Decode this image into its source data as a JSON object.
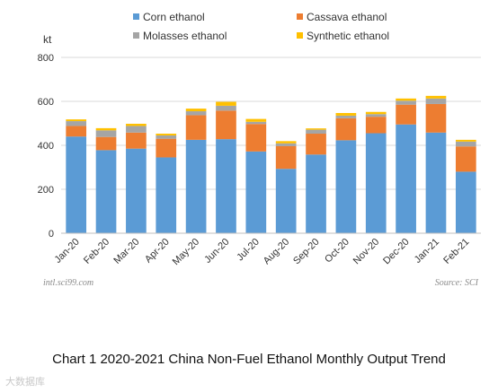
{
  "chart_data": {
    "type": "bar",
    "stacked": true,
    "title": "Chart 1 2020-2021 China Non-Fuel Ethanol Monthly Output Trend",
    "ylabel": "kt",
    "xlabel": "",
    "ylim": [
      0,
      800
    ],
    "yticks": [
      0,
      200,
      400,
      600,
      800
    ],
    "grid": true,
    "legend_position": "top",
    "categories": [
      "Jan-20",
      "Feb-20",
      "Mar-20",
      "Apr-20",
      "May-20",
      "Jun-20",
      "Jul-20",
      "Aug-20",
      "Sep-20",
      "Oct-20",
      "Nov-20",
      "Dec-20",
      "Jan-21",
      "Feb-21"
    ],
    "series": [
      {
        "name": "Corn ethanol",
        "color": "#5b9bd5",
        "values": [
          440,
          378,
          385,
          345,
          425,
          428,
          372,
          293,
          358,
          423,
          455,
          495,
          458,
          280
        ]
      },
      {
        "name": "Cassava ethanol",
        "color": "#ed7d31",
        "values": [
          48,
          60,
          73,
          85,
          112,
          130,
          125,
          103,
          95,
          100,
          75,
          90,
          130,
          115
        ]
      },
      {
        "name": "Molasses ethanol",
        "color": "#a5a5a5",
        "values": [
          22,
          30,
          30,
          15,
          18,
          22,
          10,
          13,
          18,
          12,
          12,
          18,
          25,
          22
        ]
      },
      {
        "name": "Synthetic ethanol",
        "color": "#ffc000",
        "values": [
          8,
          10,
          10,
          8,
          12,
          18,
          13,
          10,
          6,
          12,
          10,
          10,
          12,
          8
        ]
      }
    ],
    "source_left": "intl.sci99.com",
    "source_right": "Source: SCI"
  },
  "watermark": "大数据库"
}
